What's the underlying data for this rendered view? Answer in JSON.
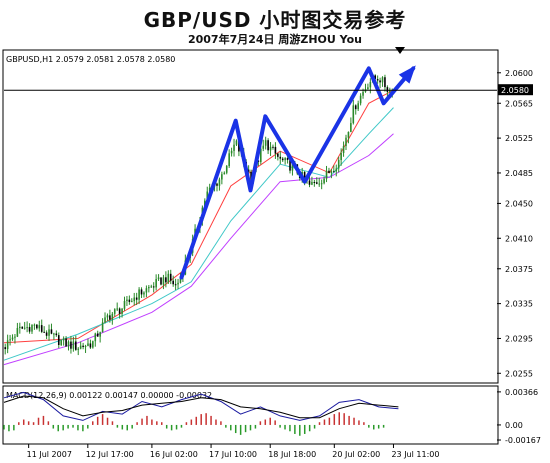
{
  "header": {
    "title": "GBP/USD 小时图交易参考",
    "subtitle": "2007年7月24日    周游ZHOU You"
  },
  "chart_data": [
    {
      "type": "candlestick",
      "symbol_info": "GBPUSD,H1  2.0579 2.0581 2.0578 2.0580",
      "last_price": 2.058,
      "last_price_label": "2.0580",
      "ylim": [
        2.0245,
        2.0625
      ],
      "yticks": [
        2.06,
        2.0565,
        2.0525,
        2.0485,
        2.045,
        2.041,
        2.0375,
        2.0335,
        2.0295,
        2.0255
      ],
      "ytick_labels": [
        "2.0600",
        "2.0565",
        "2.0525",
        "2.0485",
        "2.0450",
        "2.0410",
        "2.0375",
        "2.0335",
        "2.0295",
        "2.0255"
      ],
      "xlim": [
        0,
        100
      ],
      "xticks": [
        {
          "label": "11 Jul 2007",
          "x": 5
        },
        {
          "label": "12 Jul 17:00",
          "x": 17
        },
        {
          "label": "16 Jul 02:00",
          "x": 30
        },
        {
          "label": "17 Jul 10:00",
          "x": 42
        },
        {
          "label": "18 Jul 18:00",
          "x": 54
        },
        {
          "label": "20 Jul 02:00",
          "x": 67
        },
        {
          "label": "23 Jul 11:00",
          "x": 79
        }
      ],
      "price_path": [
        [
          0,
          2.0285
        ],
        [
          3,
          2.0305
        ],
        [
          6,
          2.031
        ],
        [
          9,
          2.03
        ],
        [
          12,
          2.029
        ],
        [
          15,
          2.0285
        ],
        [
          18,
          2.029
        ],
        [
          21,
          2.032
        ],
        [
          24,
          2.033
        ],
        [
          27,
          2.0345
        ],
        [
          30,
          2.0355
        ],
        [
          33,
          2.0365
        ],
        [
          35,
          2.0355
        ],
        [
          38,
          2.04
        ],
        [
          41,
          2.046
        ],
        [
          44,
          2.048
        ],
        [
          47,
          2.052
        ],
        [
          50,
          2.048
        ],
        [
          53,
          2.052
        ],
        [
          56,
          2.05
        ],
        [
          59,
          2.049
        ],
        [
          62,
          2.047
        ],
        [
          65,
          2.048
        ],
        [
          68,
          2.05
        ],
        [
          71,
          2.056
        ],
        [
          74,
          2.059
        ],
        [
          76,
          2.0595
        ],
        [
          78,
          2.058
        ],
        [
          80,
          2.058
        ]
      ],
      "moving_averages": [
        {
          "color": "#ff4040",
          "points": [
            [
              0,
              2.029
            ],
            [
              15,
              2.0295
            ],
            [
              30,
              2.0345
            ],
            [
              38,
              2.038
            ],
            [
              46,
              2.047
            ],
            [
              56,
              2.051
            ],
            [
              66,
              2.0485
            ],
            [
              74,
              2.0565
            ],
            [
              79,
              2.058
            ]
          ]
        },
        {
          "color": "#40c8c8",
          "points": [
            [
              0,
              2.027
            ],
            [
              15,
              2.03
            ],
            [
              30,
              2.0335
            ],
            [
              38,
              2.036
            ],
            [
              46,
              2.043
            ],
            [
              56,
              2.0495
            ],
            [
              66,
              2.048
            ],
            [
              74,
              2.053
            ],
            [
              79,
              2.056
            ]
          ]
        },
        {
          "color": "#c040ff",
          "points": [
            [
              0,
              2.0265
            ],
            [
              15,
              2.029
            ],
            [
              30,
              2.0325
            ],
            [
              38,
              2.0355
            ],
            [
              46,
              2.041
            ],
            [
              56,
              2.0475
            ],
            [
              66,
              2.048
            ],
            [
              74,
              2.0505
            ],
            [
              79,
              2.053
            ]
          ]
        }
      ],
      "overlay_path": [
        [
          36,
          2.0365
        ],
        [
          47,
          2.0545
        ],
        [
          50,
          2.0465
        ],
        [
          53,
          2.055
        ],
        [
          61,
          2.0475
        ],
        [
          74,
          2.0605
        ],
        [
          77,
          2.0565
        ],
        [
          83,
          2.0605
        ]
      ]
    },
    {
      "type": "macd",
      "label_text": "MACD(12,26,9) 0.00122 0.00147 0.00000 -0.00032",
      "ylim": [
        -0.002,
        0.0042
      ],
      "yticks": [
        0.00366,
        0.0,
        -0.00167
      ],
      "ytick_labels": [
        "0.00366",
        "0.00",
        "-0.00167"
      ],
      "histogram": [
        [
          0,
          -0.0005
        ],
        [
          1,
          -0.0007
        ],
        [
          2,
          -0.0006
        ],
        [
          3,
          0.0003
        ],
        [
          4,
          0.0006
        ],
        [
          5,
          0.0004
        ],
        [
          6,
          0.0003
        ],
        [
          7,
          0.0008
        ],
        [
          8,
          0.001
        ],
        [
          9,
          0.0004
        ],
        [
          10,
          -0.0004
        ],
        [
          11,
          -0.0007
        ],
        [
          12,
          -0.0006
        ],
        [
          13,
          -0.0004
        ],
        [
          14,
          -0.0003
        ],
        [
          15,
          -0.0006
        ],
        [
          16,
          -0.0007
        ],
        [
          17,
          -0.0004
        ],
        [
          18,
          0.0004
        ],
        [
          19,
          0.0009
        ],
        [
          20,
          0.0012
        ],
        [
          21,
          0.0008
        ],
        [
          22,
          0.0004
        ],
        [
          23,
          -0.0003
        ],
        [
          24,
          -0.0005
        ],
        [
          25,
          -0.0006
        ],
        [
          26,
          -0.0004
        ],
        [
          27,
          0.0003
        ],
        [
          28,
          0.0007
        ],
        [
          29,
          0.001
        ],
        [
          30,
          0.0006
        ],
        [
          31,
          0.0004
        ],
        [
          32,
          0.0003
        ],
        [
          33,
          -0.0004
        ],
        [
          34,
          -0.0006
        ],
        [
          35,
          -0.0005
        ],
        [
          36,
          -0.0003
        ],
        [
          37,
          0.0003
        ],
        [
          38,
          0.0006
        ],
        [
          39,
          0.0009
        ],
        [
          40,
          0.0012
        ],
        [
          41,
          0.0013
        ],
        [
          42,
          0.001
        ],
        [
          43,
          0.0006
        ],
        [
          44,
          0.0004
        ],
        [
          45,
          -0.0003
        ],
        [
          46,
          -0.0006
        ],
        [
          47,
          -0.0009
        ],
        [
          48,
          -0.0011
        ],
        [
          49,
          -0.0008
        ],
        [
          50,
          -0.0006
        ],
        [
          51,
          -0.0004
        ],
        [
          52,
          0.0004
        ],
        [
          53,
          0.0006
        ],
        [
          54,
          0.0008
        ],
        [
          55,
          0.0005
        ],
        [
          56,
          -0.0003
        ],
        [
          57,
          -0.0005
        ],
        [
          58,
          -0.0007
        ],
        [
          59,
          -0.001
        ],
        [
          60,
          -0.0012
        ],
        [
          61,
          -0.001
        ],
        [
          62,
          -0.0007
        ],
        [
          63,
          -0.0004
        ],
        [
          64,
          0.0003
        ],
        [
          65,
          0.0006
        ],
        [
          66,
          0.0008
        ],
        [
          67,
          0.0012
        ],
        [
          68,
          0.0014
        ],
        [
          69,
          0.0013
        ],
        [
          70,
          0.001
        ],
        [
          71,
          0.0008
        ],
        [
          72,
          0.0005
        ],
        [
          73,
          0.0003
        ],
        [
          74,
          -0.0003
        ],
        [
          75,
          -0.0005
        ],
        [
          76,
          -0.0004
        ],
        [
          77,
          -0.0003
        ]
      ],
      "macd_line": [
        [
          0,
          0.003
        ],
        [
          4,
          0.0036
        ],
        [
          8,
          0.0028
        ],
        [
          12,
          0.001
        ],
        [
          16,
          0.0005
        ],
        [
          20,
          0.0015
        ],
        [
          24,
          0.0012
        ],
        [
          28,
          0.0026
        ],
        [
          32,
          0.002
        ],
        [
          36,
          0.0028
        ],
        [
          40,
          0.0034
        ],
        [
          44,
          0.0026
        ],
        [
          48,
          0.0012
        ],
        [
          52,
          0.002
        ],
        [
          56,
          0.001
        ],
        [
          60,
          0.0005
        ],
        [
          64,
          0.001
        ],
        [
          68,
          0.0025
        ],
        [
          72,
          0.0028
        ],
        [
          76,
          0.002
        ],
        [
          80,
          0.0018
        ]
      ],
      "signal_line": [
        [
          0,
          0.0025
        ],
        [
          4,
          0.0032
        ],
        [
          8,
          0.003
        ],
        [
          12,
          0.0018
        ],
        [
          16,
          0.001
        ],
        [
          20,
          0.0014
        ],
        [
          24,
          0.0016
        ],
        [
          28,
          0.0022
        ],
        [
          32,
          0.0024
        ],
        [
          36,
          0.0026
        ],
        [
          40,
          0.003
        ],
        [
          44,
          0.0028
        ],
        [
          48,
          0.002
        ],
        [
          52,
          0.0018
        ],
        [
          56,
          0.0014
        ],
        [
          60,
          0.0008
        ],
        [
          64,
          0.0008
        ],
        [
          68,
          0.0018
        ],
        [
          72,
          0.0024
        ],
        [
          76,
          0.0022
        ],
        [
          80,
          0.002
        ]
      ]
    }
  ]
}
